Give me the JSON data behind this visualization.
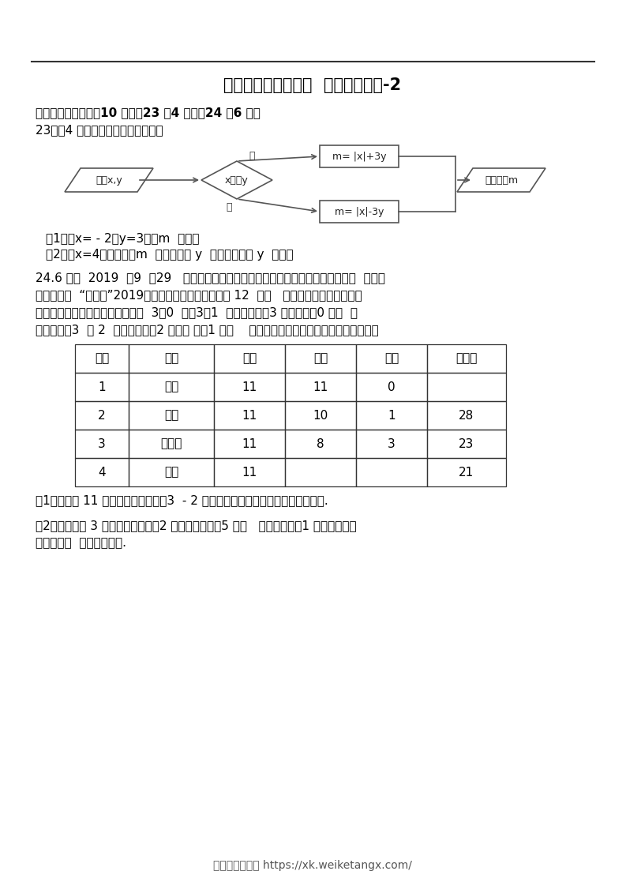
{
  "title": "人教版七年级（上）  期末数学试卷-2",
  "section_header": "四、解答题（本题內10 分，第23 题4 分，第24 题6 分）",
  "q23_intro": "23．（4 分）如图是一个运算程序：",
  "q23_sub1": "（1）若x= - 2，y=3，求m  的値；",
  "q23_sub2": "（2）若x=4，输出结果m  的値与输入 y  的値相同，求 y  的値．",
  "q24_text1": "24.6 分）  2019  年9  月29   日，中国女排以十一连胜的战绩夺得女排世界杯冠军，  成为世",
  "q24_text2": "界三大赛的  “十冠王”2019年女排世界杯的参赛队伍为 12  支，   比赛采取单循环方式，五",
  "q24_text3": "局三胜，积分规则如下：比赛中以  3－0  或考3－1  取胜的球队积3 分，负队积0 分；  而",
  "q24_text4": "在比赛中以3  － 2  取胜的球队积2 分，负 队积1 分．    前四名队伍积分榜部分信息如下表所示：",
  "table_headers": [
    "名次",
    "球队",
    "场次",
    "胜场",
    "负场",
    "总积分"
  ],
  "table_data": [
    [
      "1",
      "中国",
      "11",
      "11",
      "0",
      ""
    ],
    [
      "2",
      "美国",
      "11",
      "10",
      "1",
      "28"
    ],
    [
      "3",
      "俄罗斯",
      "11",
      "8",
      "3",
      "23"
    ],
    [
      "4",
      "巴西",
      "11",
      "",
      "",
      "21"
    ]
  ],
  "q24_sub1": "（1）中国队 11 场胜场中只有一场以3  - 2 取胜，请将中国队的总积分填在表格中.",
  "q24_sub2": "（2）巴西队积 3 分取胜的场次比积2 分取胜的场次多5 场，   且负场积分为1 分，总积分见",
  "q24_sub2b": "表，求巴西  队胜场的场数.",
  "footer": "学科学霸资料站 https://xk.weiketangx.com/",
  "bg_color": "#ffffff",
  "text_color": "#000000",
  "fc_input": "输入x,y",
  "fc_decision": "x大于y",
  "fc_yes_box": "m= |x|+3y",
  "fc_no_box": "m= |x|-3y",
  "fc_output": "输出结果m",
  "fc_yes_label": "是",
  "fc_no_label": "否"
}
